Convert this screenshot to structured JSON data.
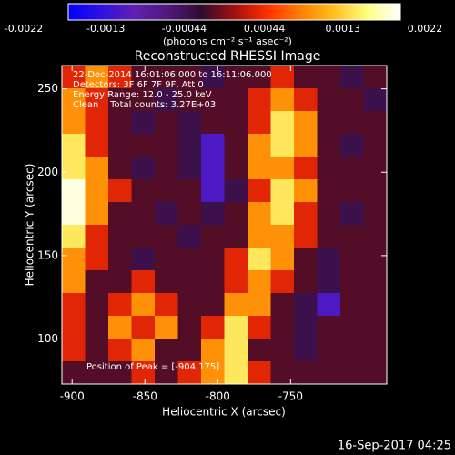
{
  "chart_data": {
    "type": "heatmap",
    "title": "Reconstructed RHESSI Image",
    "xlabel": "Heliocentric X (arcsec)",
    "ylabel": "Heliocentric Y (arcsec)",
    "xlim": [
      -907,
      -684
    ],
    "ylim": [
      73,
      264
    ],
    "xticks": [
      -900,
      -850,
      -800,
      -750
    ],
    "yticks": [
      100,
      150,
      200,
      250
    ],
    "colorbar_label": "(photons cm⁻² s⁻¹ asec⁻²)",
    "zlim": [
      -0.0022,
      0.0022
    ],
    "colorbar_ticks": [
      -0.0022,
      -0.0013,
      -0.00044,
      0.00044,
      0.0013,
      0.0022
    ],
    "colorscale": [
      "#0000ff",
      "#3010e0",
      "#6020b0",
      "#50187a",
      "#300c30",
      "#a01010",
      "#ff3000",
      "#ff8000",
      "#ffc020",
      "#ffff80",
      "#ffffff"
    ],
    "annotations": [
      "22-Dec-2014 16:01:06.000 to 16:11:06.000",
      "Detectors: 3F 6F 7F 9F, Att 0",
      "Energy Range: 12.0 - 25.0 keV",
      "Clean    Total counts: 3.27E+03"
    ],
    "peak_note": "Position of Peak = [-904,175]",
    "timestamp": "16-Sep-2017 04:25",
    "z": [
      [
        0.0003,
        0.001,
        0.0003,
        -0.0003,
        -0.0003,
        -0.0003,
        -0.0006,
        -0.0003,
        -0.0003,
        0.0003,
        -0.0003,
        -0.0003,
        -0.0006,
        -0.0003
      ],
      [
        0.001,
        0.0003,
        -0.0003,
        -0.0003,
        -0.0006,
        -0.0003,
        -0.0003,
        -0.0003,
        0.0003,
        0.001,
        0.0003,
        -0.0003,
        -0.0003,
        -0.0006
      ],
      [
        0.001,
        0.0003,
        -0.0003,
        -0.0006,
        -0.0003,
        -0.0006,
        -0.0003,
        -0.0003,
        0.0003,
        0.0016,
        0.001,
        -0.0003,
        -0.0003,
        -0.0003
      ],
      [
        0.0016,
        0.0003,
        -0.0003,
        -0.0003,
        -0.0003,
        -0.0006,
        -0.0015,
        -0.0003,
        0.001,
        0.0016,
        0.001,
        -0.0003,
        -0.0006,
        -0.0003
      ],
      [
        0.0016,
        0.001,
        -0.0003,
        -0.0006,
        -0.0003,
        -0.0006,
        -0.0015,
        -0.0003,
        0.001,
        0.001,
        0.0003,
        -0.0003,
        -0.0003,
        -0.0003
      ],
      [
        0.0021,
        0.001,
        0.0003,
        -0.0003,
        -0.0003,
        -0.0003,
        -0.0015,
        -0.0006,
        0.0003,
        0.0016,
        0.001,
        -0.0003,
        -0.0003,
        -0.0003
      ],
      [
        0.0021,
        0.001,
        -0.0003,
        -0.0003,
        -0.0006,
        -0.0003,
        -0.0006,
        -0.0003,
        0.001,
        0.0016,
        0.0003,
        -0.0003,
        -0.0006,
        -0.0003
      ],
      [
        0.0016,
        0.0003,
        -0.0003,
        -0.0003,
        -0.0003,
        -0.0006,
        -0.0003,
        -0.0003,
        0.001,
        0.001,
        0.0003,
        -0.0003,
        -0.0003,
        -0.0003
      ],
      [
        0.001,
        0.0003,
        -0.0003,
        -0.0006,
        -0.0003,
        -0.0003,
        -0.0003,
        0.0003,
        0.0016,
        0.001,
        -0.0003,
        -0.0006,
        -0.0003,
        -0.0003
      ],
      [
        0.001,
        -0.0003,
        -0.0003,
        0.0003,
        -0.0003,
        -0.0003,
        -0.0003,
        0.0003,
        0.001,
        0.0003,
        -0.0003,
        -0.0006,
        -0.0003,
        -0.0003
      ],
      [
        0.0003,
        -0.0003,
        0.0003,
        0.001,
        0.0003,
        -0.0003,
        -0.0003,
        0.001,
        0.001,
        -0.0003,
        -0.0006,
        -0.0015,
        -0.0003,
        -0.0003
      ],
      [
        0.0003,
        -0.0003,
        0.001,
        0.0003,
        0.001,
        -0.0003,
        0.0003,
        0.0016,
        0.0003,
        -0.0003,
        -0.0006,
        -0.0003,
        -0.0003,
        -0.0003
      ],
      [
        0.0003,
        -0.0003,
        0.0003,
        0.001,
        -0.0003,
        -0.0003,
        0.001,
        0.0016,
        -0.0003,
        -0.0003,
        -0.0006,
        -0.0003,
        -0.0003,
        -0.0003
      ],
      [
        -0.0003,
        -0.0003,
        -0.0003,
        0.0003,
        -0.0003,
        0.0003,
        0.001,
        0.0016,
        0.0003,
        -0.0003,
        -0.0003,
        -0.0003,
        -0.0003,
        -0.0003
      ]
    ]
  }
}
